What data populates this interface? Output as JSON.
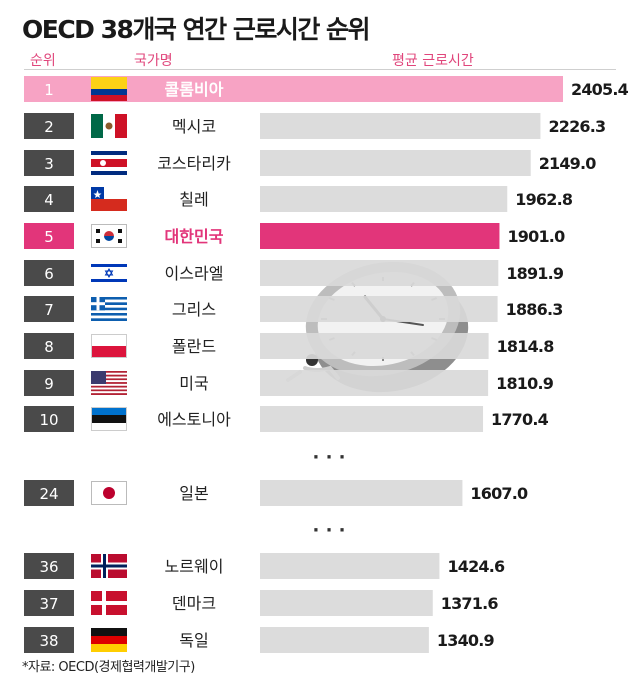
{
  "title": "OECD 38개국 연간 근로시간 순위",
  "headers": {
    "rank": "순위",
    "country": "국가명",
    "hours": "평균 근로시간"
  },
  "source": "*자료: OECD(경제협력개발기구)",
  "ellipsis": "· · ·",
  "colors": {
    "first": "#f7a3c4",
    "highlight": "#e2357a",
    "bar": "#d9d9d9",
    "rank_box": "#4a4a4a"
  },
  "chart_data": {
    "type": "bar",
    "orientation": "horizontal",
    "title": "OECD 38개국 연간 근로시간 순위",
    "xlabel": "평균 근로시간",
    "rows": [
      {
        "rank": "1",
        "country": "콜롬비아",
        "value": 2405.4,
        "flag": "colombia-flag",
        "style": "first"
      },
      {
        "rank": "2",
        "country": "멕시코",
        "value": 2226.3,
        "flag": "mexico-flag",
        "style": "normal"
      },
      {
        "rank": "3",
        "country": "코스타리카",
        "value": 2149.0,
        "flag": "costa-rica-flag",
        "style": "normal"
      },
      {
        "rank": "4",
        "country": "칠레",
        "value": 1962.8,
        "flag": "chile-flag",
        "style": "normal"
      },
      {
        "rank": "5",
        "country": "대한민국",
        "value": 1901.0,
        "flag": "korea-flag",
        "style": "highlight"
      },
      {
        "rank": "6",
        "country": "이스라엘",
        "value": 1891.9,
        "flag": "israel-flag",
        "style": "normal"
      },
      {
        "rank": "7",
        "country": "그리스",
        "value": 1886.3,
        "flag": "greece-flag",
        "style": "normal"
      },
      {
        "rank": "8",
        "country": "폴란드",
        "value": 1814.8,
        "flag": "poland-flag",
        "style": "normal"
      },
      {
        "rank": "9",
        "country": "미국",
        "value": 1810.9,
        "flag": "usa-flag",
        "style": "normal"
      },
      {
        "rank": "10",
        "country": "에스토니아",
        "value": 1770.4,
        "flag": "estonia-flag",
        "style": "normal"
      },
      {
        "rank": "24",
        "country": "일본",
        "value": 1607.0,
        "flag": "japan-flag",
        "style": "normal"
      },
      {
        "rank": "36",
        "country": "노르웨이",
        "value": 1424.6,
        "flag": "norway-flag",
        "style": "normal"
      },
      {
        "rank": "37",
        "country": "덴마크",
        "value": 1371.6,
        "flag": "denmark-flag",
        "style": "normal"
      },
      {
        "rank": "38",
        "country": "독일",
        "value": 1340.9,
        "flag": "germany-flag",
        "style": "normal"
      }
    ]
  }
}
